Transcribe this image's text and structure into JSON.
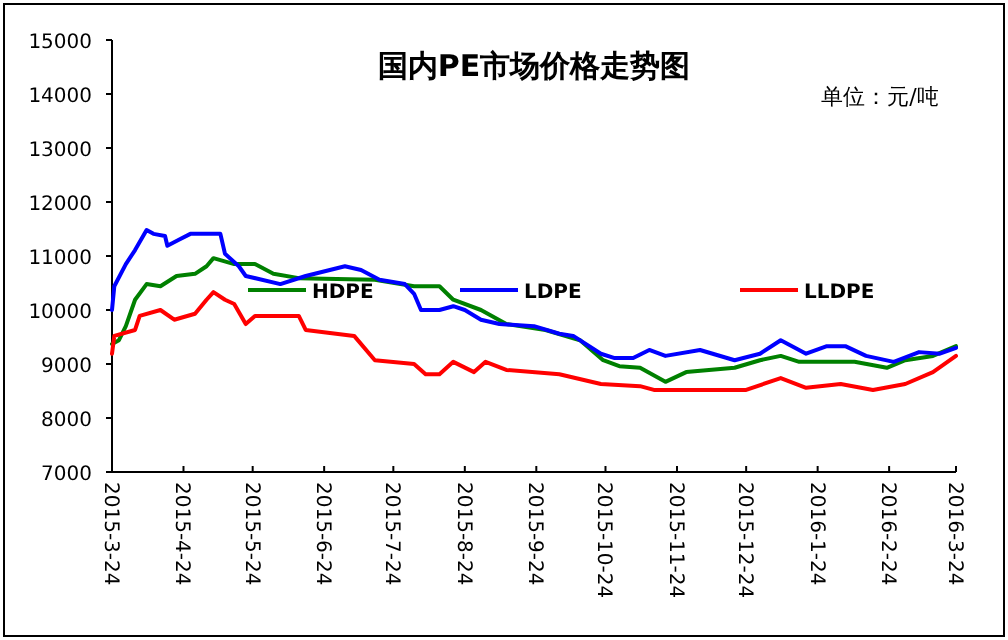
{
  "chart_data": {
    "type": "line",
    "title": "国内PE市场价格走势图",
    "annotations": [
      "单位：元/吨"
    ],
    "xlim": [
      "2015-03-24",
      "2016-03-24"
    ],
    "xticks": [
      {
        "value": "2015-03-24",
        "label": "2015-3-24"
      },
      {
        "value": "2015-04-24",
        "label": "2015-4-24"
      },
      {
        "value": "2015-05-24",
        "label": "2015-5-24"
      },
      {
        "value": "2015-06-24",
        "label": "2015-6-24"
      },
      {
        "value": "2015-07-24",
        "label": "2015-7-24"
      },
      {
        "value": "2015-08-24",
        "label": "2015-8-24"
      },
      {
        "value": "2015-09-24",
        "label": "2015-9-24"
      },
      {
        "value": "2015-10-24",
        "label": "2015-10-24"
      },
      {
        "value": "2015-11-24",
        "label": "2015-11-24"
      },
      {
        "value": "2015-12-24",
        "label": "2015-12-24"
      },
      {
        "value": "2016-01-24",
        "label": "2016-1-24"
      },
      {
        "value": "2016-02-24",
        "label": "2016-2-24"
      },
      {
        "value": "2016-03-24",
        "label": "2016-3-24"
      }
    ],
    "ylim": [
      7000,
      15000
    ],
    "yticks": [
      7000,
      8000,
      9000,
      10000,
      11000,
      12000,
      13000,
      14000,
      15000
    ],
    "grid": false,
    "legend": "center",
    "marker": "none",
    "line_style": "solid",
    "series": [
      {
        "name": "HDPE",
        "color": "#008000",
        "x": [
          "2015-03-24",
          "2015-03-27",
          "2015-03-30",
          "2015-04-03",
          "2015-04-08",
          "2015-04-14",
          "2015-04-21",
          "2015-04-29",
          "2015-05-04",
          "2015-05-07",
          "2015-05-16",
          "2015-05-25",
          "2015-06-02",
          "2015-06-13",
          "2015-07-16",
          "2015-08-02",
          "2015-08-13",
          "2015-08-19",
          "2015-08-31",
          "2015-09-11",
          "2015-09-28",
          "2015-10-13",
          "2015-10-23",
          "2015-10-30",
          "2015-11-08",
          "2015-11-19",
          "2015-11-28",
          "2015-12-19",
          "2015-12-30",
          "2016-01-08",
          "2016-01-16",
          "2016-02-09",
          "2016-02-23",
          "2016-03-02",
          "2016-03-14",
          "2016-03-24"
        ],
        "values": [
          9370,
          9440,
          9700,
          10190,
          10480,
          10440,
          10630,
          10670,
          10810,
          10960,
          10850,
          10850,
          10670,
          10590,
          10560,
          10440,
          10440,
          10190,
          10000,
          9740,
          9630,
          9440,
          9070,
          8960,
          8930,
          8670,
          8850,
          8930,
          9070,
          9150,
          9040,
          9040,
          8930,
          9070,
          9150,
          9330
        ]
      },
      {
        "name": "LDPE",
        "color": "#0000ff",
        "x": [
          "2015-03-24",
          "2015-03-25",
          "2015-03-30",
          "2015-04-03",
          "2015-04-08",
          "2015-04-11",
          "2015-04-16",
          "2015-04-17",
          "2015-04-22",
          "2015-04-27",
          "2015-05-10",
          "2015-05-12",
          "2015-05-18",
          "2015-05-21",
          "2015-06-05",
          "2015-06-16",
          "2015-07-03",
          "2015-07-10",
          "2015-07-18",
          "2015-07-29",
          "2015-08-02",
          "2015-08-05",
          "2015-08-13",
          "2015-08-19",
          "2015-08-24",
          "2015-08-31",
          "2015-09-08",
          "2015-09-23",
          "2015-10-04",
          "2015-10-10",
          "2015-10-22",
          "2015-10-28",
          "2015-11-05",
          "2015-11-12",
          "2015-11-19",
          "2015-12-04",
          "2015-12-19",
          "2015-12-30",
          "2016-01-08",
          "2016-01-19",
          "2016-01-28",
          "2016-02-05",
          "2016-02-14",
          "2016-02-26",
          "2016-03-08",
          "2016-03-17",
          "2016-03-24"
        ],
        "values": [
          10000,
          10440,
          10850,
          11110,
          11480,
          11410,
          11370,
          11190,
          11300,
          11410,
          11410,
          11040,
          10810,
          10630,
          10480,
          10630,
          10810,
          10740,
          10560,
          10480,
          10300,
          10000,
          10000,
          10070,
          10000,
          9820,
          9740,
          9700,
          9560,
          9520,
          9190,
          9110,
          9110,
          9260,
          9150,
          9260,
          9070,
          9190,
          9440,
          9190,
          9330,
          9330,
          9150,
          9040,
          9220,
          9190,
          9300
        ]
      },
      {
        "name": "LLDPE",
        "color": "#ff0000",
        "x": [
          "2015-03-24",
          "2015-03-25",
          "2015-04-03",
          "2015-04-05",
          "2015-04-14",
          "2015-04-20",
          "2015-04-29",
          "2015-05-04",
          "2015-05-07",
          "2015-05-12",
          "2015-05-16",
          "2015-05-21",
          "2015-05-25",
          "2015-06-13",
          "2015-06-16",
          "2015-07-07",
          "2015-07-16",
          "2015-08-02",
          "2015-08-07",
          "2015-08-13",
          "2015-08-19",
          "2015-08-28",
          "2015-09-02",
          "2015-09-11",
          "2015-10-04",
          "2015-10-22",
          "2015-11-08",
          "2015-11-14",
          "2015-12-24",
          "2016-01-08",
          "2016-01-19",
          "2016-02-03",
          "2016-02-17",
          "2016-03-02",
          "2016-03-14",
          "2016-03-24"
        ],
        "values": [
          9190,
          9520,
          9630,
          9890,
          10000,
          9820,
          9930,
          10190,
          10330,
          10190,
          10110,
          9740,
          9890,
          9890,
          9630,
          9520,
          9070,
          9000,
          8810,
          8810,
          9040,
          8850,
          9040,
          8890,
          8810,
          8630,
          8590,
          8520,
          8520,
          8740,
          8560,
          8630,
          8520,
          8630,
          8850,
          9150
        ]
      }
    ]
  }
}
